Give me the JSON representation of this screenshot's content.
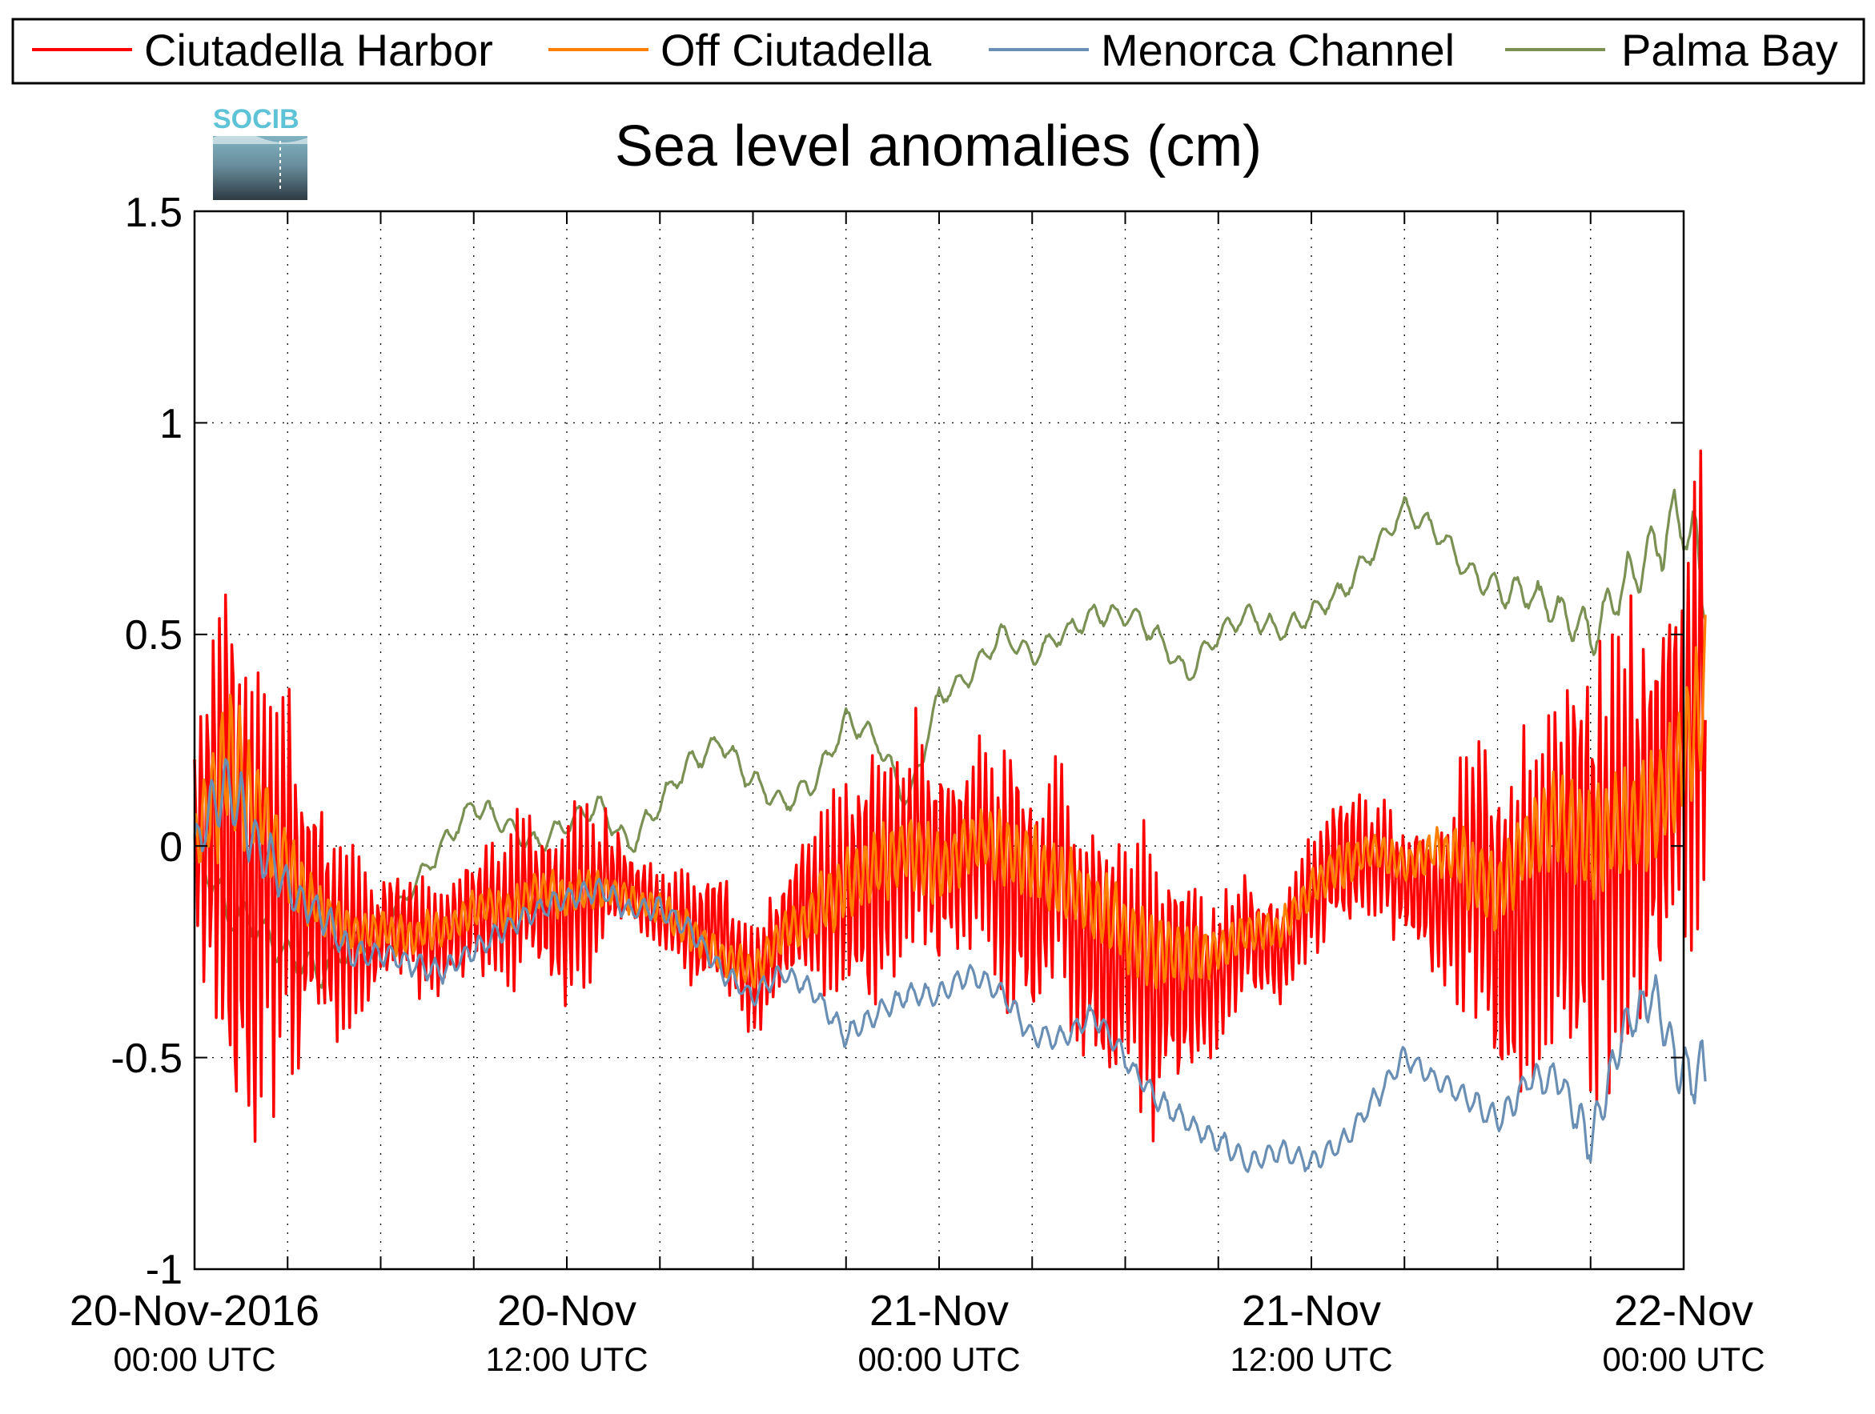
{
  "chart_data": {
    "type": "line",
    "title": "Sea level anomalies (cm)",
    "logo": {
      "text": "SOCIB",
      "icon": "socib-logo-icon"
    },
    "xlim": [
      "2016-11-20T00:00",
      "2016-11-22T00:00"
    ],
    "ylim": [
      -1,
      1.5
    ],
    "yticks": [
      -1,
      -0.5,
      0,
      0.5,
      1,
      1.5
    ],
    "ytick_labels": [
      "-1",
      "-0.5",
      "0",
      "0.5",
      "1",
      "1.5"
    ],
    "xticks": [
      {
        "date": "20-Nov-2016",
        "time": "00:00 UTC",
        "t": "2016-11-20T00:00"
      },
      {
        "date": "20-Nov",
        "time": "12:00 UTC",
        "t": "2016-11-20T12:00"
      },
      {
        "date": "21-Nov",
        "time": "00:00 UTC",
        "t": "2016-11-21T00:00"
      },
      {
        "date": "21-Nov",
        "time": "12:00 UTC",
        "t": "2016-11-21T12:00"
      },
      {
        "date": "22-Nov",
        "time": "00:00 UTC",
        "t": "2016-11-22T00:00"
      }
    ],
    "grid": true,
    "legend_position": "top",
    "series": [
      {
        "name": "Ciutadella Harbor",
        "color": "#ff0000",
        "t": [
          "2016-11-20T00:00",
          "2016-11-20T01:00",
          "2016-11-20T02:00",
          "2016-11-20T03:00",
          "2016-11-20T04:00",
          "2016-11-20T05:00",
          "2016-11-20T06:00",
          "2016-11-20T07:00",
          "2016-11-20T08:00",
          "2016-11-20T09:00",
          "2016-11-20T10:00",
          "2016-11-20T11:00",
          "2016-11-20T12:00",
          "2016-11-20T13:00",
          "2016-11-20T14:00",
          "2016-11-20T15:00",
          "2016-11-20T16:00",
          "2016-11-20T17:00",
          "2016-11-20T18:00",
          "2016-11-20T19:00",
          "2016-11-20T20:00",
          "2016-11-20T21:00",
          "2016-11-20T22:00",
          "2016-11-20T23:00",
          "2016-11-21T00:00",
          "2016-11-21T01:00",
          "2016-11-21T02:00",
          "2016-11-21T03:00",
          "2016-11-21T04:00",
          "2016-11-21T05:00",
          "2016-11-21T06:00",
          "2016-11-21T07:00",
          "2016-11-21T08:00",
          "2016-11-21T09:00",
          "2016-11-21T10:00",
          "2016-11-21T11:00",
          "2016-11-21T12:00",
          "2016-11-21T13:00",
          "2016-11-21T14:00",
          "2016-11-21T15:00",
          "2016-11-21T16:00",
          "2016-11-21T17:00",
          "2016-11-21T18:00",
          "2016-11-21T19:00",
          "2016-11-21T20:00",
          "2016-11-21T21:00",
          "2016-11-21T22:00",
          "2016-11-21T23:00",
          "2016-11-22T00:00",
          "2016-11-22T01:00"
        ],
        "mean": [
          0.0,
          0.05,
          -0.05,
          -0.1,
          -0.2,
          -0.25,
          -0.2,
          -0.22,
          -0.2,
          -0.15,
          -0.15,
          -0.1,
          -0.12,
          -0.1,
          -0.1,
          -0.15,
          -0.2,
          -0.2,
          -0.3,
          -0.2,
          -0.15,
          -0.1,
          -0.05,
          0.0,
          -0.05,
          0.0,
          -0.05,
          -0.1,
          -0.1,
          -0.2,
          -0.25,
          -0.3,
          -0.3,
          -0.3,
          -0.2,
          -0.25,
          -0.1,
          -0.05,
          0.0,
          -0.1,
          -0.1,
          -0.1,
          -0.2,
          -0.1,
          0.0,
          -0.1,
          0.0,
          0.1,
          0.2,
          0.5
        ],
        "amp": [
          0.3,
          0.75,
          0.7,
          0.5,
          0.3,
          0.25,
          0.15,
          0.15,
          0.15,
          0.15,
          0.2,
          0.2,
          0.25,
          0.2,
          0.1,
          0.1,
          0.15,
          0.15,
          0.15,
          0.15,
          0.25,
          0.3,
          0.35,
          0.3,
          0.3,
          0.25,
          0.35,
          0.35,
          0.3,
          0.35,
          0.35,
          0.35,
          0.3,
          0.2,
          0.15,
          0.15,
          0.15,
          0.2,
          0.15,
          0.15,
          0.2,
          0.35,
          0.5,
          0.45,
          0.5,
          0.6,
          0.55,
          0.5,
          0.5,
          0.9
        ]
      },
      {
        "name": "Off Ciutadella",
        "color": "#ff7f00",
        "t": [
          "2016-11-20T00:00",
          "2016-11-20T01:00",
          "2016-11-20T02:00",
          "2016-11-20T03:00",
          "2016-11-20T04:00",
          "2016-11-20T05:00",
          "2016-11-20T06:00",
          "2016-11-20T07:00",
          "2016-11-20T08:00",
          "2016-11-20T09:00",
          "2016-11-20T10:00",
          "2016-11-20T11:00",
          "2016-11-20T12:00",
          "2016-11-20T13:00",
          "2016-11-20T14:00",
          "2016-11-20T15:00",
          "2016-11-20T16:00",
          "2016-11-20T17:00",
          "2016-11-20T18:00",
          "2016-11-20T19:00",
          "2016-11-20T20:00",
          "2016-11-20T21:00",
          "2016-11-20T22:00",
          "2016-11-20T23:00",
          "2016-11-21T00:00",
          "2016-11-21T01:00",
          "2016-11-21T02:00",
          "2016-11-21T03:00",
          "2016-11-21T04:00",
          "2016-11-21T05:00",
          "2016-11-21T06:00",
          "2016-11-21T07:00",
          "2016-11-21T08:00",
          "2016-11-21T09:00",
          "2016-11-21T10:00",
          "2016-11-21T11:00",
          "2016-11-21T12:00",
          "2016-11-21T13:00",
          "2016-11-21T14:00",
          "2016-11-21T15:00",
          "2016-11-21T16:00",
          "2016-11-21T17:00",
          "2016-11-21T18:00",
          "2016-11-21T19:00",
          "2016-11-21T20:00",
          "2016-11-21T21:00",
          "2016-11-21T22:00",
          "2016-11-21T23:00",
          "2016-11-22T00:00",
          "2016-11-22T01:00"
        ],
        "mean": [
          0.0,
          0.2,
          0.1,
          -0.05,
          -0.15,
          -0.2,
          -0.2,
          -0.22,
          -0.2,
          -0.15,
          -0.15,
          -0.1,
          -0.12,
          -0.1,
          -0.12,
          -0.15,
          -0.2,
          -0.25,
          -0.3,
          -0.2,
          -0.15,
          -0.1,
          -0.05,
          0.0,
          -0.05,
          0.0,
          0.0,
          -0.05,
          -0.1,
          -0.15,
          -0.2,
          -0.25,
          -0.25,
          -0.25,
          -0.2,
          -0.2,
          -0.1,
          -0.05,
          0.0,
          -0.05,
          0.0,
          -0.05,
          -0.1,
          0.0,
          0.05,
          0.0,
          0.05,
          0.1,
          0.2,
          0.4
        ],
        "amp": [
          0.1,
          0.2,
          0.15,
          0.1,
          0.06,
          0.06,
          0.05,
          0.05,
          0.05,
          0.05,
          0.05,
          0.05,
          0.06,
          0.05,
          0.04,
          0.04,
          0.05,
          0.05,
          0.05,
          0.05,
          0.08,
          0.1,
          0.1,
          0.1,
          0.1,
          0.08,
          0.1,
          0.1,
          0.1,
          0.1,
          0.1,
          0.1,
          0.08,
          0.06,
          0.05,
          0.05,
          0.05,
          0.06,
          0.05,
          0.05,
          0.06,
          0.1,
          0.12,
          0.12,
          0.12,
          0.15,
          0.15,
          0.15,
          0.15,
          0.25
        ]
      },
      {
        "name": "Menorca Channel",
        "color": "#6a8fb4",
        "t": [
          "2016-11-20T00:00",
          "2016-11-20T01:00",
          "2016-11-20T02:00",
          "2016-11-20T03:00",
          "2016-11-20T04:00",
          "2016-11-20T05:00",
          "2016-11-20T06:00",
          "2016-11-20T07:00",
          "2016-11-20T08:00",
          "2016-11-20T09:00",
          "2016-11-20T10:00",
          "2016-11-20T11:00",
          "2016-11-20T12:00",
          "2016-11-20T13:00",
          "2016-11-20T14:00",
          "2016-11-20T15:00",
          "2016-11-20T16:00",
          "2016-11-20T17:00",
          "2016-11-20T18:00",
          "2016-11-20T19:00",
          "2016-11-20T20:00",
          "2016-11-20T21:00",
          "2016-11-20T22:00",
          "2016-11-20T23:00",
          "2016-11-21T00:00",
          "2016-11-21T01:00",
          "2016-11-21T02:00",
          "2016-11-21T03:00",
          "2016-11-21T04:00",
          "2016-11-21T05:00",
          "2016-11-21T06:00",
          "2016-11-21T07:00",
          "2016-11-21T08:00",
          "2016-11-21T09:00",
          "2016-11-21T10:00",
          "2016-11-21T11:00",
          "2016-11-21T12:00",
          "2016-11-21T13:00",
          "2016-11-21T14:00",
          "2016-11-21T15:00",
          "2016-11-21T16:00",
          "2016-11-21T17:00",
          "2016-11-21T18:00",
          "2016-11-21T19:00",
          "2016-11-21T20:00",
          "2016-11-21T21:00",
          "2016-11-21T22:00",
          "2016-11-21T23:00",
          "2016-11-22T00:00",
          "2016-11-22T01:00"
        ],
        "mean": [
          0.0,
          0.15,
          0.0,
          -0.1,
          -0.15,
          -0.25,
          -0.25,
          -0.28,
          -0.3,
          -0.25,
          -0.2,
          -0.15,
          -0.12,
          -0.1,
          -0.15,
          -0.15,
          -0.2,
          -0.3,
          -0.35,
          -0.3,
          -0.35,
          -0.45,
          -0.4,
          -0.35,
          -0.35,
          -0.3,
          -0.35,
          -0.45,
          -0.45,
          -0.4,
          -0.5,
          -0.6,
          -0.65,
          -0.7,
          -0.75,
          -0.72,
          -0.75,
          -0.7,
          -0.6,
          -0.5,
          -0.55,
          -0.6,
          -0.65,
          -0.55,
          -0.55,
          -0.7,
          -0.45,
          -0.35,
          -0.55,
          -0.5
        ],
        "amp": [
          0.05,
          0.1,
          0.08,
          0.05,
          0.04,
          0.04,
          0.03,
          0.03,
          0.03,
          0.03,
          0.03,
          0.03,
          0.03,
          0.03,
          0.03,
          0.03,
          0.03,
          0.03,
          0.03,
          0.03,
          0.03,
          0.03,
          0.03,
          0.03,
          0.03,
          0.03,
          0.03,
          0.03,
          0.03,
          0.03,
          0.03,
          0.03,
          0.03,
          0.03,
          0.03,
          0.03,
          0.03,
          0.03,
          0.03,
          0.03,
          0.03,
          0.03,
          0.04,
          0.04,
          0.05,
          0.06,
          0.06,
          0.06,
          0.08,
          0.1
        ]
      },
      {
        "name": "Palma Bay",
        "color": "#7a9153",
        "t": [
          "2016-11-20T00:00",
          "2016-11-20T01:00",
          "2016-11-20T02:00",
          "2016-11-20T03:00",
          "2016-11-20T04:00",
          "2016-11-20T05:00",
          "2016-11-20T06:00",
          "2016-11-20T07:00",
          "2016-11-20T08:00",
          "2016-11-20T09:00",
          "2016-11-20T10:00",
          "2016-11-20T11:00",
          "2016-11-20T12:00",
          "2016-11-20T13:00",
          "2016-11-20T14:00",
          "2016-11-20T15:00",
          "2016-11-20T16:00",
          "2016-11-20T17:00",
          "2016-11-20T18:00",
          "2016-11-20T19:00",
          "2016-11-20T20:00",
          "2016-11-20T21:00",
          "2016-11-20T22:00",
          "2016-11-20T23:00",
          "2016-11-21T00:00",
          "2016-11-21T01:00",
          "2016-11-21T02:00",
          "2016-11-21T03:00",
          "2016-11-21T04:00",
          "2016-11-21T05:00",
          "2016-11-21T06:00",
          "2016-11-21T07:00",
          "2016-11-21T08:00",
          "2016-11-21T09:00",
          "2016-11-21T10:00",
          "2016-11-21T11:00",
          "2016-11-21T12:00",
          "2016-11-21T13:00",
          "2016-11-21T14:00",
          "2016-11-21T15:00",
          "2016-11-21T16:00",
          "2016-11-21T17:00",
          "2016-11-21T18:00",
          "2016-11-21T19:00",
          "2016-11-21T20:00",
          "2016-11-21T21:00",
          "2016-11-21T22:00",
          "2016-11-21T23:00",
          "2016-11-22T00:00",
          "2016-11-22T01:00"
        ],
        "mean": [
          0.0,
          -0.15,
          -0.2,
          -0.25,
          -0.3,
          -0.25,
          -0.2,
          -0.1,
          0.0,
          0.1,
          0.05,
          0.0,
          0.05,
          0.1,
          0.0,
          0.1,
          0.2,
          0.25,
          0.15,
          0.1,
          0.15,
          0.3,
          0.25,
          0.1,
          0.35,
          0.4,
          0.5,
          0.45,
          0.5,
          0.55,
          0.55,
          0.5,
          0.4,
          0.5,
          0.55,
          0.5,
          0.55,
          0.6,
          0.7,
          0.8,
          0.75,
          0.65,
          0.6,
          0.6,
          0.55,
          0.5,
          0.6,
          0.7,
          0.8,
          0.5
        ],
        "amp": [
          0.05,
          0.05,
          0.05,
          0.04,
          0.04,
          0.04,
          0.03,
          0.03,
          0.03,
          0.03,
          0.03,
          0.03,
          0.03,
          0.03,
          0.03,
          0.03,
          0.03,
          0.03,
          0.03,
          0.03,
          0.03,
          0.03,
          0.03,
          0.03,
          0.03,
          0.03,
          0.03,
          0.03,
          0.03,
          0.03,
          0.03,
          0.03,
          0.03,
          0.03,
          0.03,
          0.03,
          0.03,
          0.03,
          0.03,
          0.03,
          0.03,
          0.03,
          0.04,
          0.04,
          0.05,
          0.06,
          0.06,
          0.08,
          0.1,
          0.1
        ]
      }
    ]
  }
}
